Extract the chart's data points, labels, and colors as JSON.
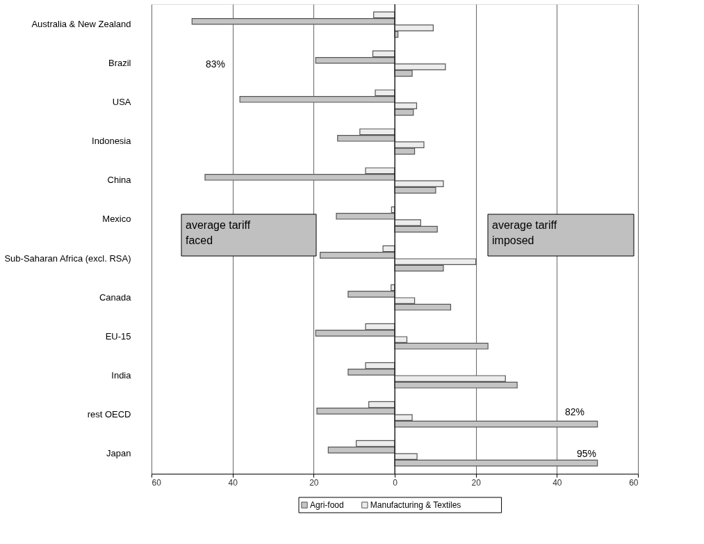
{
  "chart_data": {
    "type": "bar",
    "orientation": "horizontal",
    "categories": [
      "Australia & New Zealand",
      "Brazil",
      "USA",
      "Indonesia",
      "China",
      "Mexico",
      "Sub-Saharan Africa (excl. RSA)",
      "Canada",
      "EU-15",
      "India",
      "rest OECD",
      "Japan"
    ],
    "series": [
      {
        "color": "#ececec",
        "values": [
          -5.2,
          -5.4,
          -4.8,
          -8.6,
          -7.2,
          -0.8,
          -2.9,
          -0.9,
          -7.2,
          -7.2,
          -6.4,
          -9.5
        ]
      },
      {
        "color": "#c4c4c4",
        "values": [
          -50,
          -19.5,
          -38.2,
          -14.1,
          -46.8,
          -14.4,
          -18.4,
          -11.5,
          -19.5,
          -11.5,
          -19.2,
          -16.4
        ]
      },
      {
        "name": "Manufacturing & Textiles",
        "color": "#ececec",
        "values": [
          9.5,
          12.5,
          5.4,
          7.2,
          12,
          6.4,
          20,
          4.9,
          3,
          27.3,
          4.3,
          5.5
        ]
      },
      {
        "name": "Agri-food",
        "color": "#c4c4c4",
        "values": [
          0.8,
          4.3,
          4.6,
          4.9,
          10.1,
          10.5,
          12,
          13.8,
          23,
          30.2,
          50,
          50
        ]
      }
    ],
    "xlim": [
      -60,
      60
    ],
    "xticks": [
      {
        "value": -60,
        "label": "60"
      },
      {
        "value": -40,
        "label": "40"
      },
      {
        "value": -20,
        "label": "20"
      },
      0,
      20,
      40,
      60
    ],
    "grid": "x",
    "legend": "bottom",
    "annotations": [
      "83%",
      "82%",
      "95%",
      "average tariff faced",
      "average tariff imposed"
    ]
  }
}
